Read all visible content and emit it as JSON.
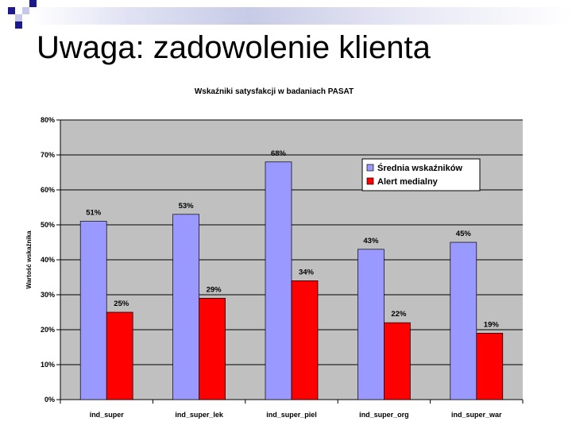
{
  "slide": {
    "title": "Uwaga: zadowolenie klienta"
  },
  "colors": {
    "series_1": "#9999ff",
    "series_2": "#ff0000",
    "plot_background": "#c0c0c0",
    "deco_dark": "#1a1a8c",
    "deco_light": "#c5c8e8"
  },
  "chart_data": {
    "type": "bar",
    "title": "Wskaźniki satysfakcji w badaniach PASAT",
    "xlabel": "",
    "ylabel": "Wartość wskaźnika",
    "categories": [
      "ind_super",
      "ind_super_lek",
      "ind_super_piel",
      "ind_super_org",
      "ind_super_war"
    ],
    "series": [
      {
        "name": "Średnia wskaźników",
        "color": "#9999ff",
        "values": [
          51,
          53,
          68,
          43,
          45
        ],
        "labels": [
          "51%",
          "53%",
          "68%",
          "43%",
          "45%"
        ]
      },
      {
        "name": "Alert medialny",
        "color": "#ff0000",
        "values": [
          25,
          29,
          34,
          22,
          19
        ],
        "labels": [
          "25%",
          "29%",
          "34%",
          "22%",
          "19%"
        ]
      }
    ],
    "ylim": [
      0,
      80
    ],
    "yticks": [
      "0%",
      "10%",
      "20%",
      "30%",
      "40%",
      "50%",
      "60%",
      "70%",
      "80%"
    ],
    "grid": true,
    "legend_position": "top-right"
  }
}
